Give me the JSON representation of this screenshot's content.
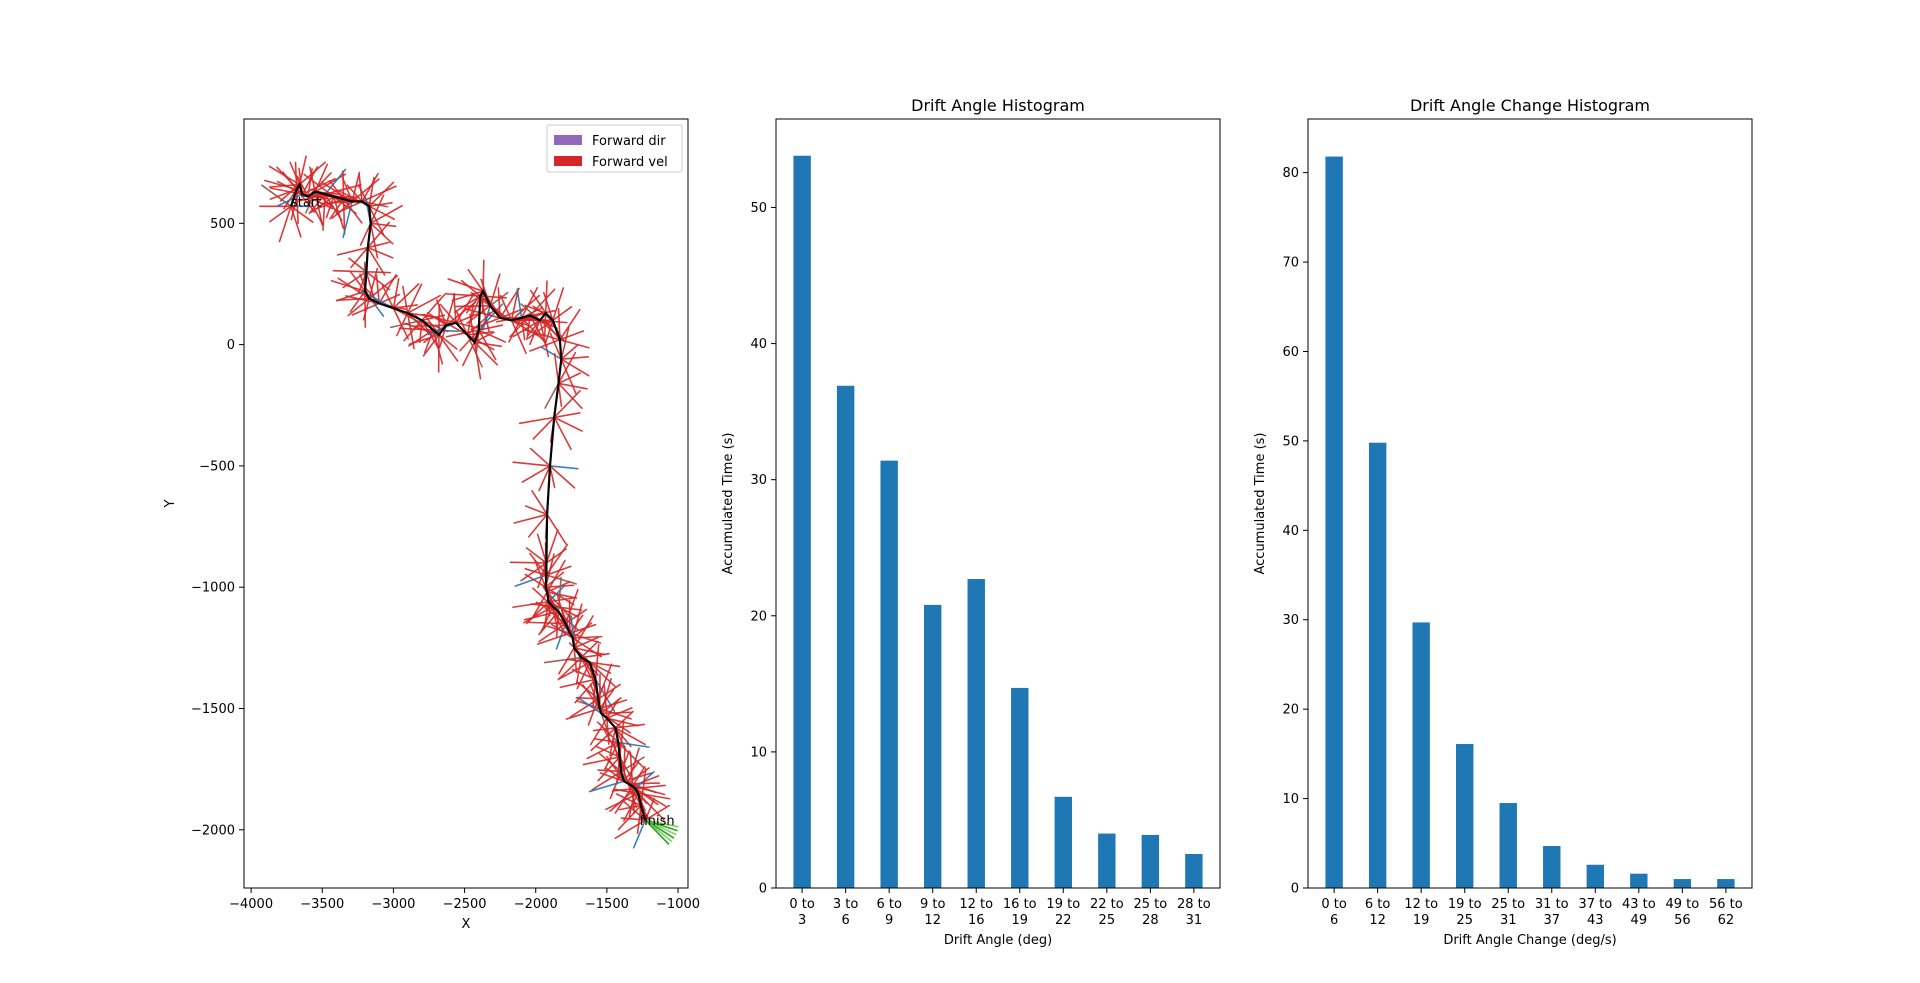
{
  "chart_data": [
    {
      "type": "line",
      "xlabel": "X",
      "ylabel": "Y",
      "xlim": [
        -4050,
        -930
      ],
      "ylim": [
        -2240,
        930
      ],
      "xticks": [
        -4000,
        -3500,
        -3000,
        -2500,
        -2000,
        -1500,
        -1000
      ],
      "yticks": [
        -2000,
        -1500,
        -1000,
        -500,
        0,
        500
      ],
      "xtick_labels": [
        "−4000",
        "−3500",
        "−3000",
        "−2500",
        "−2000",
        "−1500",
        "−1000"
      ],
      "ytick_labels": [
        "−2000",
        "−1500",
        "−1000",
        "−500",
        "0",
        "500"
      ],
      "legend": {
        "position": "upper right",
        "entries": [
          {
            "label": "Forward dir",
            "color": "#9467bd"
          },
          {
            "label": "Forward vel",
            "color": "#d62728"
          }
        ]
      },
      "annotations": [
        {
          "text": "start",
          "x": -3720,
          "y": 570
        },
        {
          "text": "finish",
          "x": -1270,
          "y": -1980
        }
      ],
      "path": {
        "color": "#000000",
        "x": [
          -3720,
          -3680,
          -3660,
          -3640,
          -3600,
          -3550,
          -3480,
          -3420,
          -3350,
          -3290,
          -3220,
          -3170,
          -3160,
          -3180,
          -3190,
          -3200,
          -3170,
          -3100,
          -3000,
          -2900,
          -2800,
          -2720,
          -2680,
          -2630,
          -2560,
          -2480,
          -2430,
          -2400,
          -2390,
          -2370,
          -2320,
          -2250,
          -2170,
          -2100,
          -2040,
          -1970,
          -1930,
          -1880,
          -1830,
          -1820,
          -1840,
          -1870,
          -1900,
          -1920,
          -1925,
          -1925,
          -1930,
          -1920,
          -1910,
          -1880,
          -1840,
          -1790,
          -1760,
          -1740,
          -1730,
          -1680,
          -1620,
          -1580,
          -1560,
          -1550,
          -1540,
          -1500,
          -1440,
          -1420,
          -1410,
          -1400,
          -1380,
          -1350,
          -1320,
          -1300,
          -1280,
          -1260,
          -1230
        ],
        "y": [
          570,
          640,
          660,
          620,
          610,
          630,
          620,
          610,
          600,
          590,
          590,
          570,
          500,
          400,
          300,
          220,
          190,
          170,
          150,
          130,
          100,
          60,
          40,
          80,
          90,
          40,
          10,
          60,
          200,
          220,
          160,
          110,
          100,
          110,
          120,
          100,
          130,
          100,
          20,
          -60,
          -160,
          -300,
          -500,
          -700,
          -900,
          -950,
          -1000,
          -1020,
          -1060,
          -1080,
          -1100,
          -1150,
          -1190,
          -1210,
          -1250,
          -1290,
          -1310,
          -1380,
          -1460,
          -1500,
          -1520,
          -1540,
          -1580,
          -1640,
          -1700,
          -1760,
          -1800,
          -1810,
          -1820,
          -1830,
          -1850,
          -1900,
          -1960
        ]
      }
    },
    {
      "type": "bar",
      "title": "Drift Angle Histogram",
      "xlabel": "Drift Angle (deg)",
      "ylabel": "Accumulated Time (s)",
      "ylim": [
        0,
        56.5
      ],
      "yticks": [
        0,
        10,
        20,
        30,
        40,
        50
      ],
      "categories": [
        "0 to\n3",
        "3 to\n6",
        "6 to\n9",
        "9 to\n12",
        "12 to\n16",
        "16 to\n19",
        "19 to\n22",
        "22 to\n25",
        "25 to\n28",
        "28 to\n31"
      ],
      "values": [
        53.8,
        36.9,
        31.4,
        20.8,
        22.7,
        14.7,
        6.7,
        4.0,
        3.9,
        2.5
      ],
      "color": "#1f77b4"
    },
    {
      "type": "bar",
      "title": "Drift Angle Change Histogram",
      "xlabel": "Drift Angle Change (deg/s)",
      "ylabel": "Accumulated Time (s)",
      "ylim": [
        0,
        86
      ],
      "yticks": [
        0,
        10,
        20,
        30,
        40,
        50,
        60,
        70,
        80
      ],
      "categories": [
        "0 to\n6",
        "6 to\n12",
        "12 to\n19",
        "19 to\n25",
        "25 to\n31",
        "31 to\n37",
        "37 to\n43",
        "43 to\n49",
        "49 to\n56",
        "56 to\n62"
      ],
      "values": [
        81.8,
        49.8,
        29.7,
        16.1,
        9.5,
        4.7,
        2.6,
        1.6,
        1.0,
        1.0
      ],
      "color": "#1f77b4"
    }
  ]
}
